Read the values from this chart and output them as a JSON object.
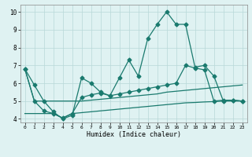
{
  "xlabel": "Humidex (Indice chaleur)",
  "x_values": [
    0,
    1,
    2,
    3,
    4,
    5,
    6,
    7,
    8,
    9,
    10,
    11,
    12,
    13,
    14,
    15,
    16,
    17,
    18,
    19,
    20,
    21,
    22,
    23
  ],
  "main_line": [
    6.8,
    5.9,
    5.0,
    4.4,
    4.0,
    4.2,
    6.3,
    6.0,
    5.5,
    5.3,
    6.3,
    7.3,
    6.4,
    8.5,
    9.3,
    10.0,
    9.3,
    9.3,
    6.9,
    7.0,
    6.4,
    5.0,
    5.05,
    5.0
  ],
  "line2": [
    6.8,
    5.0,
    5.0,
    5.0,
    5.0,
    5.0,
    5.0,
    5.05,
    5.1,
    5.15,
    5.2,
    5.25,
    5.3,
    5.35,
    5.4,
    5.5,
    5.55,
    5.6,
    5.65,
    5.7,
    5.75,
    5.8,
    5.85,
    5.9
  ],
  "line3": [
    4.3,
    4.3,
    4.3,
    4.3,
    4.05,
    4.3,
    4.35,
    4.4,
    4.45,
    4.5,
    4.55,
    4.6,
    4.65,
    4.7,
    4.75,
    4.8,
    4.85,
    4.9,
    4.92,
    4.95,
    4.97,
    5.0,
    5.0,
    5.0
  ],
  "line4": [
    6.8,
    5.0,
    4.45,
    4.3,
    4.05,
    4.3,
    5.2,
    5.35,
    5.45,
    5.3,
    5.4,
    5.5,
    5.6,
    5.7,
    5.8,
    5.9,
    6.0,
    7.0,
    6.85,
    6.75,
    5.0,
    5.05,
    5.05,
    5.0
  ],
  "ylim": [
    3.8,
    10.4
  ],
  "xlim": [
    -0.5,
    23.5
  ],
  "yticks": [
    4,
    5,
    6,
    7,
    8,
    9,
    10
  ],
  "xticks": [
    0,
    1,
    2,
    3,
    4,
    5,
    6,
    7,
    8,
    9,
    10,
    11,
    12,
    13,
    14,
    15,
    16,
    17,
    18,
    19,
    20,
    21,
    22,
    23
  ],
  "line_color": "#1a7a6e",
  "bg_color": "#dff2f2",
  "grid_color": "#b8d8d8",
  "marker_size": 2.5,
  "linewidth": 0.9
}
